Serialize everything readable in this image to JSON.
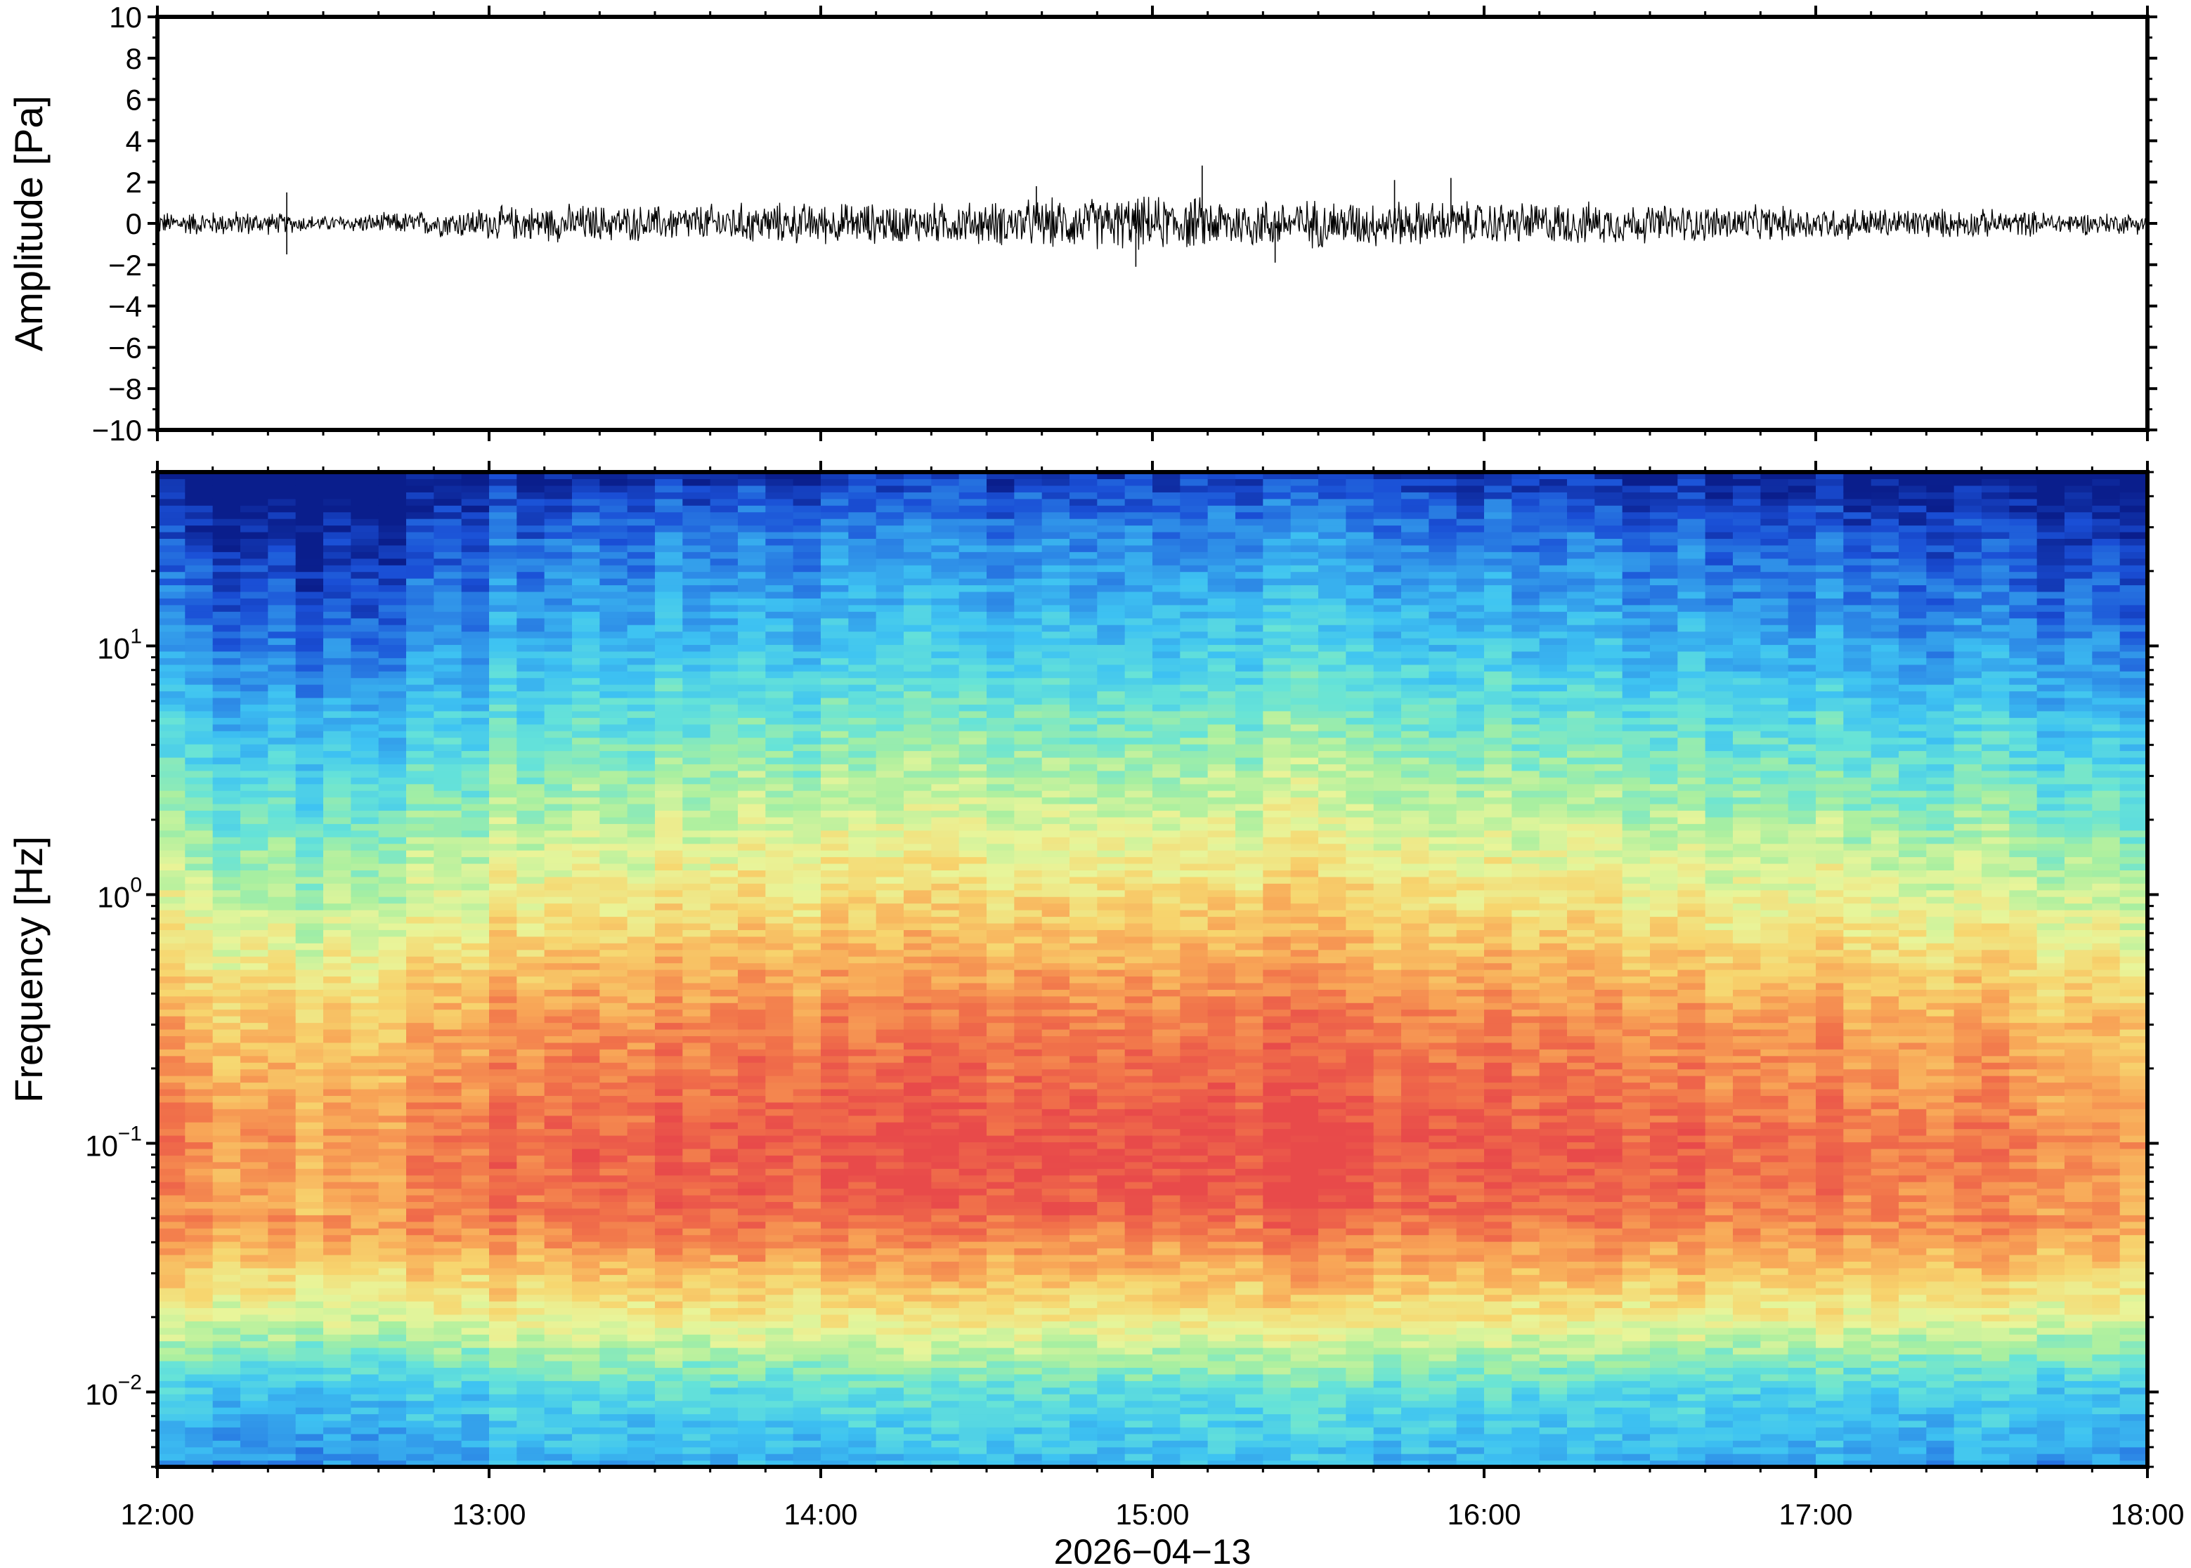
{
  "chart_data": [
    {
      "type": "line",
      "title": "",
      "xlabel": "",
      "ylabel": "Amplitude [Pa]",
      "xlim": [
        "12:00",
        "18:00"
      ],
      "ylim": [
        -10,
        10
      ],
      "y_ticks": [
        "10",
        "8",
        "6",
        "4",
        "2",
        "0",
        "−2",
        "−4",
        "−6",
        "−8",
        "−10"
      ],
      "grid": false,
      "series": [
        {
          "color": "#000000",
          "x_hours": [
            12.0,
            12.25,
            12.5,
            12.75,
            13.0,
            13.25,
            13.5,
            13.75,
            14.0,
            14.25,
            14.5,
            14.75,
            15.0,
            15.25,
            15.5,
            15.75,
            16.0,
            16.25,
            16.5,
            16.75,
            17.0,
            17.25,
            17.5,
            17.75,
            18.0
          ],
          "envelope": [
            0.45,
            0.5,
            0.3,
            0.45,
            0.65,
            0.75,
            0.7,
            0.8,
            0.8,
            0.8,
            0.85,
            1.0,
            1.05,
            1.0,
            0.95,
            0.9,
            0.85,
            0.85,
            0.75,
            0.7,
            0.65,
            0.6,
            0.55,
            0.45,
            0.4
          ],
          "peaks": [
            {
              "x_hours": 12.39,
              "y": 1.5
            },
            {
              "x_hours": 12.39,
              "y": -1.5
            },
            {
              "x_hours": 14.65,
              "y": 1.8
            },
            {
              "x_hours": 15.15,
              "y": 2.8
            },
            {
              "x_hours": 15.37,
              "y": -1.9
            },
            {
              "x_hours": 15.73,
              "y": 2.1
            },
            {
              "x_hours": 15.9,
              "y": 2.2
            },
            {
              "x_hours": 14.95,
              "y": -2.1
            }
          ]
        }
      ]
    },
    {
      "type": "heatmap",
      "title": "",
      "xlabel": "2026−04−13",
      "ylabel": "Frequency [Hz]",
      "xlim": [
        "12:00",
        "18:00"
      ],
      "ylim_hz": [
        0.005,
        50
      ],
      "y_scale": "log",
      "x_ticks": [
        "12:00",
        "13:00",
        "14:00",
        "15:00",
        "16:00",
        "17:00",
        "18:00"
      ],
      "y_ticks": [
        {
          "value": 0.01,
          "base": "10",
          "exp": "−2"
        },
        {
          "value": 0.1,
          "base": "10",
          "exp": "−1"
        },
        {
          "value": 1,
          "base": "10",
          "exp": "0"
        },
        {
          "value": 10,
          "base": "10",
          "exp": "1"
        }
      ],
      "colormap": [
        "#0a1e8c",
        "#1a4fd6",
        "#2f90e8",
        "#3ec3f2",
        "#66e3d8",
        "#a8efa0",
        "#e8f59a",
        "#f7d56e",
        "#f8a657",
        "#f1734a",
        "#e84a4a"
      ],
      "power_profile_by_frequency": [
        {
          "hz": 0.005,
          "level": 0.25
        },
        {
          "hz": 0.01,
          "level": 0.35
        },
        {
          "hz": 0.02,
          "level": 0.62
        },
        {
          "hz": 0.05,
          "level": 0.88
        },
        {
          "hz": 0.1,
          "level": 0.92
        },
        {
          "hz": 0.3,
          "level": 0.82
        },
        {
          "hz": 1,
          "level": 0.62
        },
        {
          "hz": 3,
          "level": 0.45
        },
        {
          "hz": 10,
          "level": 0.26
        },
        {
          "hz": 30,
          "level": 0.12
        },
        {
          "hz": 50,
          "level": 0.0
        }
      ],
      "time_modulation": [
        {
          "x_hours": 12.0,
          "offset": -0.04
        },
        {
          "x_hours": 12.5,
          "offset": -0.12
        },
        {
          "x_hours": 12.75,
          "offset": -0.08
        },
        {
          "x_hours": 13.0,
          "offset": 0.0
        },
        {
          "x_hours": 14.0,
          "offset": 0.04
        },
        {
          "x_hours": 15.0,
          "offset": 0.09
        },
        {
          "x_hours": 15.5,
          "offset": 0.07
        },
        {
          "x_hours": 16.0,
          "offset": 0.04
        },
        {
          "x_hours": 17.0,
          "offset": 0.0
        },
        {
          "x_hours": 17.5,
          "offset": -0.04
        },
        {
          "x_hours": 18.0,
          "offset": -0.07
        }
      ]
    }
  ]
}
